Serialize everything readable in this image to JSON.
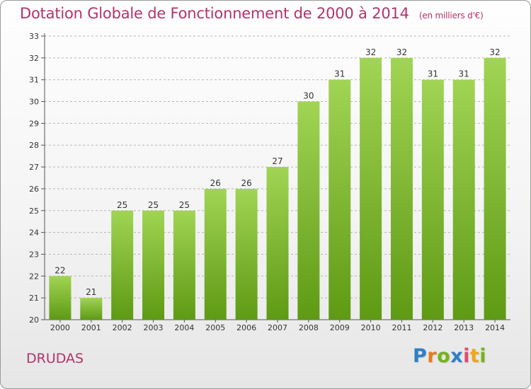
{
  "header": {
    "title": "Dotation Globale de Fonctionnement de 2000 à 2014",
    "unit": "(en milliers d'€)"
  },
  "footer": {
    "place": "DRUDAS",
    "logo_text": "Proxiti"
  },
  "colors": {
    "title": "#b3336b",
    "bar_top": "#a1d454",
    "bar_bottom": "#5e9a14",
    "grid": "#b5b5b5"
  },
  "chart_data": {
    "type": "bar",
    "title": "Dotation Globale de Fonctionnement de 2000 à 2014",
    "subtitle": "(en milliers d'€)",
    "categories": [
      "2000",
      "2001",
      "2002",
      "2003",
      "2004",
      "2005",
      "2006",
      "2007",
      "2008",
      "2009",
      "2010",
      "2011",
      "2012",
      "2013",
      "2014"
    ],
    "values": [
      22,
      21,
      25,
      25,
      25,
      26,
      26,
      27,
      30,
      31,
      32,
      32,
      31,
      31,
      32
    ],
    "ylim": [
      20,
      33
    ],
    "yticks": [
      20,
      21,
      22,
      23,
      24,
      25,
      26,
      27,
      28,
      29,
      30,
      31,
      32,
      33
    ],
    "grid": true,
    "grid_style": "dashed horizontal"
  }
}
